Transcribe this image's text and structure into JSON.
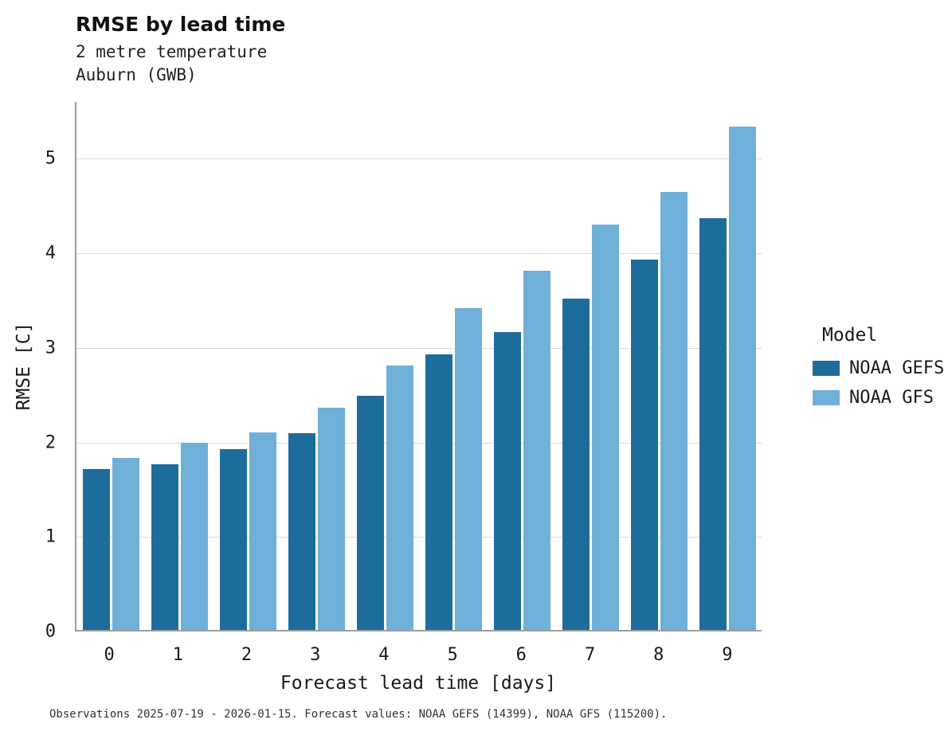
{
  "caption": "Observations 2025-07-19 - 2026-01-15. Forecast values: NOAA GEFS (14399), NOAA GFS (115200).",
  "chart_data": {
    "type": "bar",
    "title": "RMSE by lead time",
    "subtitle": [
      "2 metre temperature",
      "Auburn (GWB)"
    ],
    "categories": [
      "0",
      "1",
      "2",
      "3",
      "4",
      "5",
      "6",
      "7",
      "8",
      "9"
    ],
    "series": [
      {
        "name": "NOAA GEFS",
        "color": "#1c6d9c",
        "values": [
          1.7,
          1.75,
          1.91,
          2.08,
          2.48,
          2.91,
          3.15,
          3.5,
          3.92,
          4.35
        ]
      },
      {
        "name": "NOAA GFS",
        "color": "#6fb0d8",
        "values": [
          1.82,
          1.98,
          2.09,
          2.35,
          2.8,
          3.4,
          3.8,
          4.29,
          4.63,
          5.32
        ]
      }
    ],
    "xlabel": "Forecast lead time [days]",
    "ylabel": "RMSE [C]",
    "ylim": [
      0,
      5.6
    ],
    "yticks": [
      0,
      1,
      2,
      3,
      4,
      5
    ],
    "grid": true,
    "legend": {
      "title": "Model",
      "position": "right"
    }
  }
}
